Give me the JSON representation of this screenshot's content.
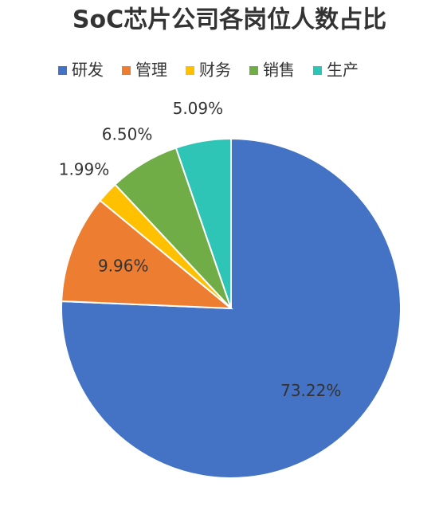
{
  "chart_data": {
    "type": "pie",
    "title": "SoC芯片公司各岗位人数占比",
    "categories": [
      "研发",
      "管理",
      "财务",
      "销售",
      "生产"
    ],
    "values": [
      73.22,
      9.96,
      1.99,
      6.5,
      5.09
    ],
    "value_labels": [
      "73.22%",
      "9.96%",
      "1.99%",
      "6.50%",
      "5.09%"
    ],
    "colors": [
      "#4472c4",
      "#ed7d31",
      "#ffc000",
      "#70ad47",
      "#2ec4b6"
    ],
    "legend": "top"
  }
}
